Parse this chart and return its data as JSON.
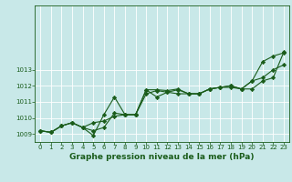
{
  "title": "",
  "xlabel": "Graphe pression niveau de la mer (hPa)",
  "background_color": "#c8e8e8",
  "line_color": "#1a5c1a",
  "xlim": [
    -0.5,
    23.5
  ],
  "ylim": [
    1008.5,
    1017.0
  ],
  "yticks": [
    1009,
    1010,
    1011,
    1012,
    1013
  ],
  "xticks": [
    0,
    1,
    2,
    3,
    4,
    5,
    6,
    7,
    8,
    9,
    10,
    11,
    12,
    13,
    14,
    15,
    16,
    17,
    18,
    19,
    20,
    21,
    22,
    23
  ],
  "series": [
    [
      1009.2,
      1009.1,
      1009.5,
      1009.7,
      1009.4,
      1008.9,
      1010.2,
      1011.3,
      1010.2,
      1010.2,
      1011.75,
      1011.75,
      1011.7,
      1011.8,
      1011.5,
      1011.5,
      1011.8,
      1011.9,
      1012.0,
      1011.8,
      1012.3,
      1013.5,
      1013.85,
      1014.05
    ],
    [
      1009.2,
      1009.1,
      1009.5,
      1009.7,
      1009.4,
      1009.7,
      1009.8,
      1010.1,
      1010.2,
      1010.2,
      1011.75,
      1011.3,
      1011.6,
      1011.75,
      1011.5,
      1011.5,
      1011.8,
      1011.9,
      1012.0,
      1011.8,
      1012.3,
      1012.5,
      1013.0,
      1013.3
    ],
    [
      1009.2,
      1009.1,
      1009.5,
      1009.7,
      1009.4,
      1009.2,
      1009.4,
      1010.3,
      1010.2,
      1010.2,
      1011.5,
      1011.7,
      1011.6,
      1011.5,
      1011.5,
      1011.5,
      1011.8,
      1011.9,
      1011.9,
      1011.8,
      1011.8,
      1012.3,
      1012.5,
      1014.1
    ]
  ]
}
